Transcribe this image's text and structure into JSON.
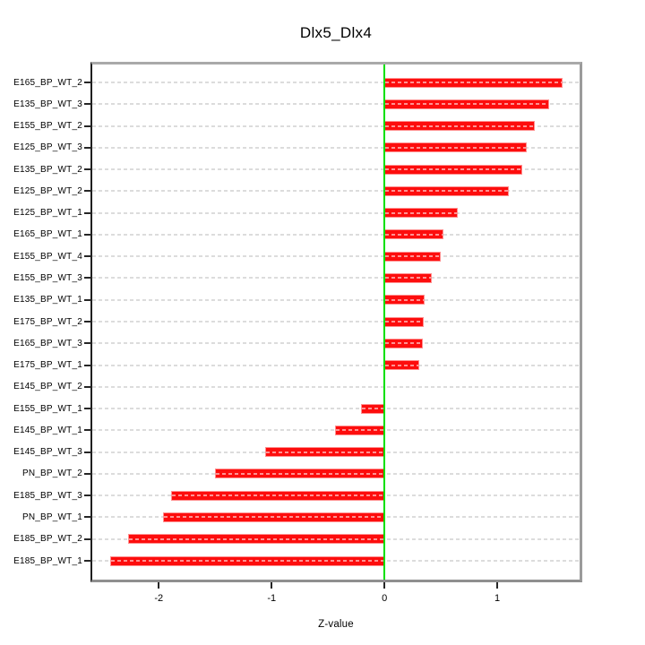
{
  "chart": {
    "title": "Dlx5_Dlx4",
    "xlabel": "Z-value"
  },
  "chart_data": {
    "type": "bar",
    "orientation": "horizontal",
    "title": "Dlx5_Dlx4",
    "xlabel": "Z-value",
    "ylabel": "",
    "xlim": [
      -2.59,
      1.73
    ],
    "x_ticks": [
      -2,
      -1,
      0,
      1
    ],
    "grid": true,
    "grid_style": "dashed",
    "zero_line": 0,
    "legend": false,
    "categories": [
      "E165_BP_WT_2",
      "E135_BP_WT_3",
      "E155_BP_WT_2",
      "E125_BP_WT_3",
      "E135_BP_WT_2",
      "E125_BP_WT_2",
      "E125_BP_WT_1",
      "E165_BP_WT_1",
      "E155_BP_WT_4",
      "E155_BP_WT_3",
      "E135_BP_WT_1",
      "E175_BP_WT_2",
      "E165_BP_WT_3",
      "E175_BP_WT_1",
      "E145_BP_WT_2",
      "E155_BP_WT_1",
      "E145_BP_WT_1",
      "E145_BP_WT_3",
      "PN_BP_WT_2",
      "E185_BP_WT_3",
      "PN_BP_WT_1",
      "E185_BP_WT_2",
      "E185_BP_WT_1"
    ],
    "values": [
      1.58,
      1.46,
      1.33,
      1.26,
      1.22,
      1.1,
      0.65,
      0.52,
      0.5,
      0.42,
      0.36,
      0.35,
      0.34,
      0.31,
      0.0,
      -0.21,
      -0.44,
      -1.06,
      -1.5,
      -1.89,
      -1.96,
      -2.27,
      -2.43
    ],
    "colors": {
      "bar": "#fd0d0d",
      "bar_edge": "#ff9090",
      "zero_line": "#00e000",
      "grid": "#dcdcdc",
      "axis_text": "#000000",
      "box": "#999999",
      "axis_line": "#1f1f1f"
    }
  }
}
